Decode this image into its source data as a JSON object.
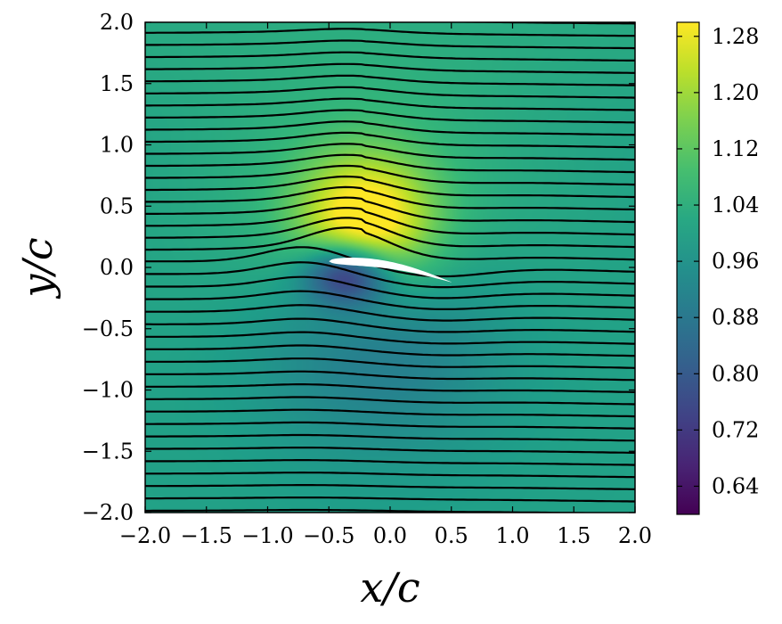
{
  "chart_data": {
    "type": "heatmap",
    "title": "",
    "xlabel": "x/c",
    "ylabel": "y/c",
    "xlim": [
      -2.0,
      2.0
    ],
    "ylim": [
      -2.0,
      2.0
    ],
    "xticks": [
      "−2.0",
      "−1.5",
      "−1.0",
      "−0.5",
      "0.0",
      "0.5",
      "1.0",
      "1.5",
      "2.0"
    ],
    "xtick_values": [
      -2.0,
      -1.5,
      -1.0,
      -0.5,
      0.0,
      0.5,
      1.0,
      1.5,
      2.0
    ],
    "yticks": [
      "−2.0",
      "−1.5",
      "−1.0",
      "−0.5",
      "0.0",
      "0.5",
      "1.0",
      "1.5",
      "2.0"
    ],
    "ytick_values": [
      -2.0,
      -1.5,
      -1.0,
      -0.5,
      0.0,
      0.5,
      1.0,
      1.5,
      2.0
    ],
    "colorbar": {
      "colormap": "viridis",
      "range": [
        0.6,
        1.3
      ],
      "ticks": [
        "0.64",
        "0.72",
        "0.80",
        "0.88",
        "0.96",
        "1.04",
        "1.12",
        "1.20",
        "1.28"
      ],
      "tick_values": [
        0.64,
        0.72,
        0.8,
        0.88,
        0.96,
        1.04,
        1.12,
        1.2,
        1.28
      ]
    },
    "field": {
      "freestream": 1.0,
      "description_free": true,
      "upper_peak": {
        "x": -0.2,
        "y": 0.35,
        "value": 1.3
      },
      "lower_trough": {
        "x": -0.35,
        "y": -0.05,
        "value": 0.62
      }
    },
    "airfoil": {
      "leading_edge": [
        -0.5,
        0.05
      ],
      "trailing_edge": [
        0.5,
        -0.12
      ],
      "fill": "#ffffff"
    },
    "streamlines": {
      "count": 41,
      "y_start": -2.0,
      "y_end": 2.0,
      "color": "#000000"
    }
  }
}
